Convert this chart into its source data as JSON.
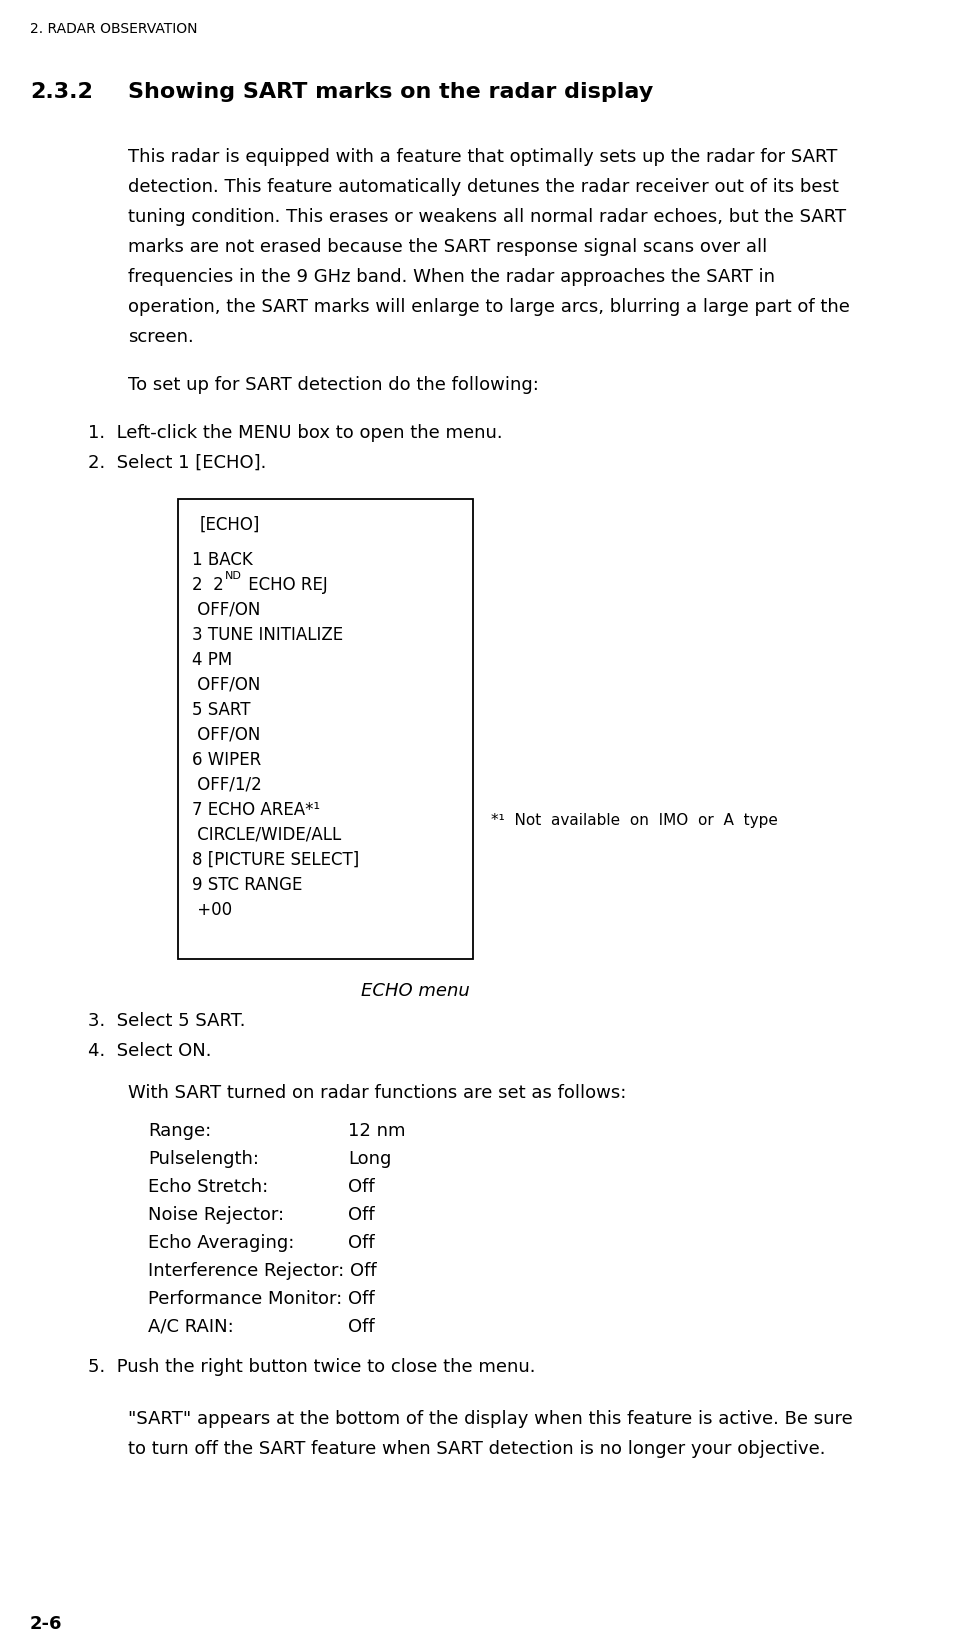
{
  "page_header": "2. RADAR OBSERVATION",
  "section_number": "2.3.2",
  "section_title": "Showing SART marks on the radar display",
  "body_lines": [
    "This radar is equipped with a feature that optimally sets up the radar for SART",
    "detection. This feature automatically detunes the radar receiver out of its best",
    "tuning condition. This erases or weakens all normal radar echoes, but the SART",
    "marks are not erased because the SART response signal scans over all",
    "frequencies in the 9 GHz band. When the radar approaches the SART in",
    "operation, the SART marks will enlarge to large arcs, blurring a large part of the",
    "screen."
  ],
  "intro_line": "To set up for SART detection do the following:",
  "step1": "1.  Left-click the MENU box to open the menu.",
  "step2": "2.  Select 1 [ECHO].",
  "menu_title": "[ECHO]",
  "menu_items": [
    [
      "1",
      " BACK"
    ],
    [
      "2",
      " 2"
    ],
    [
      "",
      " OFF/ON"
    ],
    [
      "3",
      " TUNE INITIALIZE"
    ],
    [
      "4",
      " PM"
    ],
    [
      "",
      " OFF/ON"
    ],
    [
      "5",
      " SART"
    ],
    [
      "",
      " OFF/ON"
    ],
    [
      "6",
      " WIPER"
    ],
    [
      "",
      " OFF/1/2"
    ],
    [
      "7",
      " ECHO AREA*¹"
    ],
    [
      "",
      " CIRCLE/WIDE/ALL"
    ],
    [
      "8",
      " [PICTURE SELECT]"
    ],
    [
      "9",
      " STC RANGE"
    ],
    [
      "",
      " +00"
    ]
  ],
  "footnote": "*¹  Not  available  on  IMO  or  A  type",
  "menu_caption": "ECHO menu",
  "step3": "3.  Select 5 SART.",
  "step4": "4.  Select ON.",
  "sart_intro": "With SART turned on radar functions are set as follows:",
  "sart_settings": [
    [
      "Range:",
      "12 nm"
    ],
    [
      "Pulselength:",
      "Long"
    ],
    [
      "Echo Stretch:",
      "Off"
    ],
    [
      "Noise Rejector:",
      "Off"
    ],
    [
      "Echo Averaging:",
      "Off"
    ],
    [
      "Interference Rejector: Off",
      ""
    ],
    [
      "Performance Monitor: Off",
      ""
    ],
    [
      "A/C RAIN:",
      "Off"
    ]
  ],
  "step5": "5.  Push the right button twice to close the menu.",
  "footer_lines": [
    "\"SART\" appears at the bottom of the display when this feature is active. Be sure",
    "to turn off the SART feature when SART detection is no longer your objective."
  ],
  "page_number": "2-6",
  "bg_color": "#ffffff",
  "text_color": "#000000"
}
